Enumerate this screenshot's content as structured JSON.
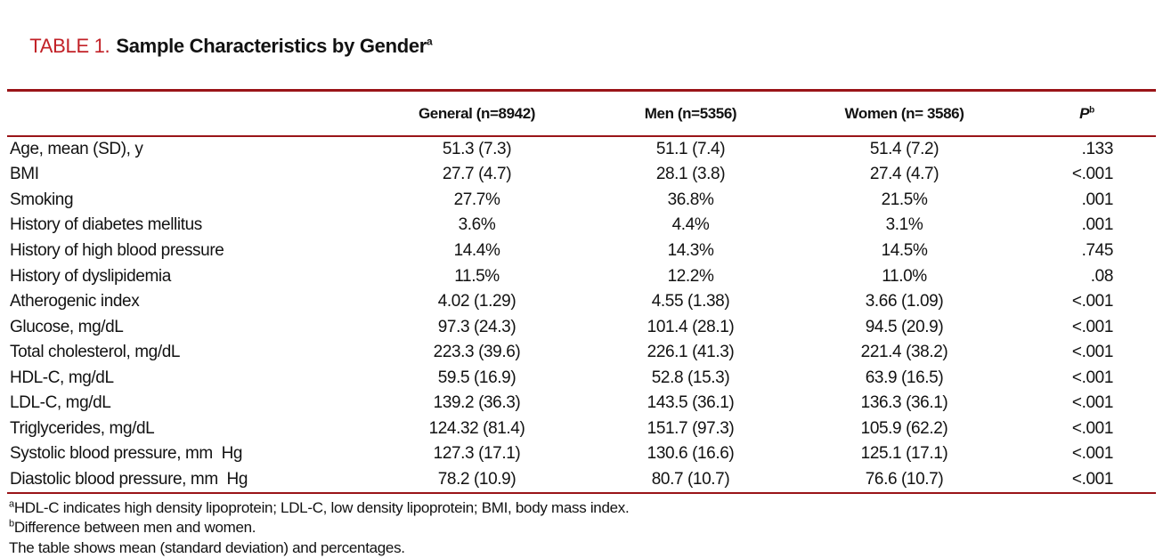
{
  "colors": {
    "accent": "#c22127",
    "rule": "#9a1418",
    "text": "#121212"
  },
  "title": {
    "label": "TABLE 1.",
    "text": "Sample Characteristics by Gender",
    "superscript": "a"
  },
  "table": {
    "columns": [
      {
        "label": "General (n=8942)"
      },
      {
        "label": "Men (n=5356)"
      },
      {
        "label": "Women (n= 3586)"
      },
      {
        "label": "P",
        "superscript": "b"
      }
    ],
    "rows": [
      {
        "label": "Age, mean (SD), y",
        "general": "51.3 (7.3)",
        "men": "51.1 (7.4)",
        "women": "51.4 (7.2)",
        "p": ".133"
      },
      {
        "label": "BMI",
        "general": "27.7 (4.7)",
        "men": "28.1 (3.8)",
        "women": "27.4 (4.7)",
        "p": "<.001"
      },
      {
        "label": "Smoking",
        "general": "27.7%",
        "men": "36.8%",
        "women": "21.5%",
        "p": ".001"
      },
      {
        "label": "History of diabetes mellitus",
        "general": "3.6%",
        "men": "4.4%",
        "women": "3.1%",
        "p": ".001"
      },
      {
        "label": "History of high blood pressure",
        "general": "14.4%",
        "men": "14.3%",
        "women": "14.5%",
        "p": ".745"
      },
      {
        "label": "History of dyslipidemia",
        "general": "11.5%",
        "men": "12.2%",
        "women": "11.0%",
        "p": ".08"
      },
      {
        "label": "Atherogenic index",
        "general": "4.02 (1.29)",
        "men": "4.55 (1.38)",
        "women": "3.66 (1.09)",
        "p": "<.001"
      },
      {
        "label": "Glucose, mg/dL",
        "general": "97.3 (24.3)",
        "men": "101.4 (28.1)",
        "women": "94.5 (20.9)",
        "p": "<.001"
      },
      {
        "label": "Total cholesterol, mg/dL",
        "general": "223.3 (39.6)",
        "men": "226.1 (41.3)",
        "women": "221.4 (38.2)",
        "p": "<.001"
      },
      {
        "label": "HDL-C, mg/dL",
        "general": "59.5 (16.9)",
        "men": "52.8 (15.3)",
        "women": "63.9 (16.5)",
        "p": "<.001"
      },
      {
        "label": "LDL-C, mg/dL",
        "general": "139.2 (36.3)",
        "men": "143.5 (36.1)",
        "women": "136.3 (36.1)",
        "p": "<.001"
      },
      {
        "label": "Triglycerides, mg/dL",
        "general": "124.32 (81.4)",
        "men": "151.7 (97.3)",
        "women": "105.9 (62.2)",
        "p": "<.001"
      },
      {
        "label": "Systolic blood pressure, mm  Hg",
        "general": "127.3 (17.1)",
        "men": "130.6 (16.6)",
        "women": "125.1 (17.1)",
        "p": "<.001"
      },
      {
        "label": "Diastolic blood pressure, mm  Hg",
        "general": "78.2 (10.9)",
        "men": "80.7 (10.7)",
        "women": "76.6 (10.7)",
        "p": "<.001"
      }
    ]
  },
  "footnotes": [
    {
      "sup": "a",
      "text": "HDL-C indicates high density lipoprotein; LDL-C, low density lipoprotein; BMI, body mass index."
    },
    {
      "sup": "b",
      "text": "Difference between men and women."
    },
    {
      "sup": "",
      "text": "The table shows mean (standard deviation) and percentages."
    }
  ]
}
